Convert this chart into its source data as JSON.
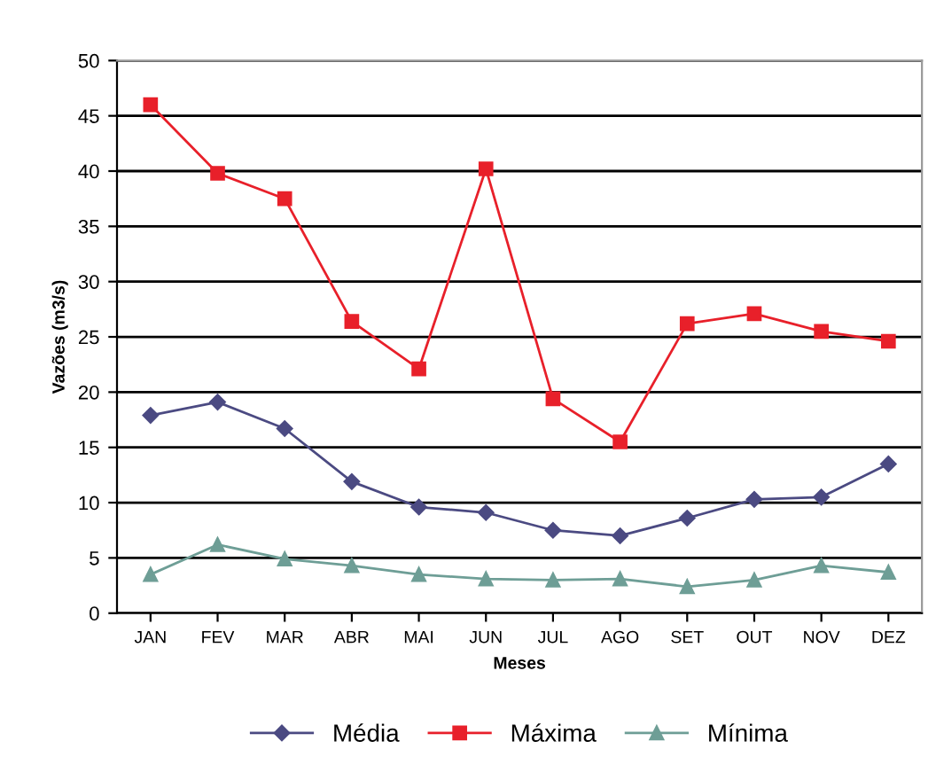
{
  "chart_data": {
    "type": "line",
    "xlabel": "Meses",
    "ylabel": "Vazões (m3/s)",
    "categories": [
      "JAN",
      "FEV",
      "MAR",
      "ABR",
      "MAI",
      "JUN",
      "JUL",
      "AGO",
      "SET",
      "OUT",
      "NOV",
      "DEZ"
    ],
    "series": [
      {
        "name": "Média",
        "color": "#4b4a82",
        "marker": "diamond",
        "values": [
          17.9,
          19.1,
          16.7,
          11.9,
          9.6,
          9.1,
          7.5,
          7.0,
          8.6,
          10.3,
          10.5,
          13.5
        ]
      },
      {
        "name": "Máxima",
        "color": "#e8202a",
        "marker": "square",
        "values": [
          46.0,
          39.8,
          37.5,
          26.4,
          22.1,
          40.2,
          19.4,
          15.5,
          26.2,
          27.1,
          25.5,
          24.6
        ]
      },
      {
        "name": "Mínima",
        "color": "#6e9e96",
        "marker": "triangle",
        "values": [
          3.5,
          6.2,
          4.9,
          4.3,
          3.5,
          3.1,
          3.0,
          3.1,
          2.4,
          3.0,
          4.3,
          3.7
        ]
      }
    ],
    "ylim": [
      0,
      50
    ],
    "yticks": [
      0,
      5,
      10,
      15,
      20,
      25,
      30,
      35,
      40,
      45,
      50
    ],
    "grid": "y",
    "legend": "bottom"
  }
}
